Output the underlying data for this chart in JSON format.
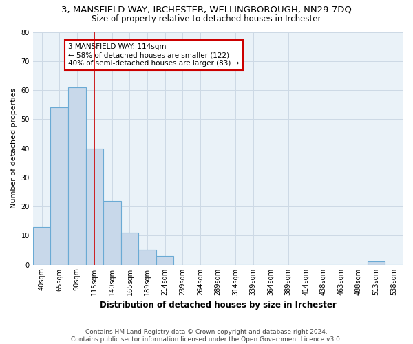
{
  "title1": "3, MANSFIELD WAY, IRCHESTER, WELLINGBOROUGH, NN29 7DQ",
  "title2": "Size of property relative to detached houses in Irchester",
  "xlabel": "Distribution of detached houses by size in Irchester",
  "ylabel": "Number of detached properties",
  "categories": [
    "40sqm",
    "65sqm",
    "90sqm",
    "115sqm",
    "140sqm",
    "165sqm",
    "189sqm",
    "214sqm",
    "239sqm",
    "264sqm",
    "289sqm",
    "314sqm",
    "339sqm",
    "364sqm",
    "389sqm",
    "414sqm",
    "438sqm",
    "463sqm",
    "488sqm",
    "513sqm",
    "538sqm"
  ],
  "values": [
    13,
    54,
    61,
    40,
    22,
    11,
    5,
    3,
    0,
    0,
    0,
    0,
    0,
    0,
    0,
    0,
    0,
    0,
    0,
    1,
    0
  ],
  "bar_color": "#c8d8ea",
  "bar_edge_color": "#6aaad4",
  "bar_linewidth": 0.8,
  "vline_x": 3,
  "vline_color": "#cc0000",
  "annotation_text": "3 MANSFIELD WAY: 114sqm\n← 58% of detached houses are smaller (122)\n40% of semi-detached houses are larger (83) →",
  "annotation_box_color": "#ffffff",
  "annotation_box_edgecolor": "#cc0000",
  "ylim": [
    0,
    80
  ],
  "yticks": [
    0,
    10,
    20,
    30,
    40,
    50,
    60,
    70,
    80
  ],
  "grid_color": "#cdd9e5",
  "background_color": "#eaf2f8",
  "footer": "Contains HM Land Registry data © Crown copyright and database right 2024.\nContains public sector information licensed under the Open Government Licence v3.0.",
  "title1_fontsize": 9.5,
  "title2_fontsize": 8.5,
  "xlabel_fontsize": 8.5,
  "ylabel_fontsize": 8,
  "tick_fontsize": 7,
  "footer_fontsize": 6.5,
  "annot_fontsize": 7.5
}
